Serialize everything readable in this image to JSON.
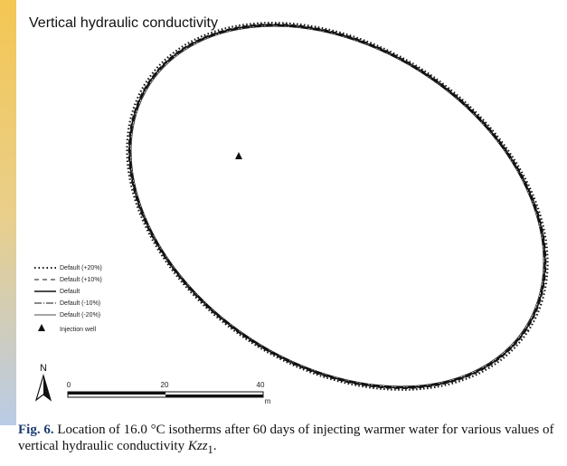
{
  "figure": {
    "title": "Vertical hydraulic conductivity",
    "legend": [
      "Default (+20%)",
      "Default (+10%)",
      "Default",
      "Default (-10%)",
      "Default (-20%)",
      "Injection well"
    ],
    "north": "N",
    "scale": {
      "labels": [
        "0",
        "20",
        "40"
      ],
      "unit": "m"
    },
    "caption": {
      "label": "Fig. 6.",
      "text": "Location of 16.0 °C isotherms after 60 days of injecting warmer water for various values of vertical hydraulic conductivity",
      "symbol": "Kzz",
      "subscript": "1",
      "end": "."
    }
  }
}
